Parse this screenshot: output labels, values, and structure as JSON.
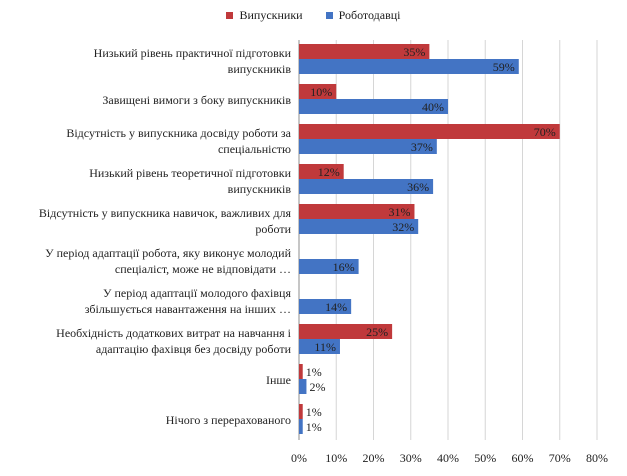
{
  "chart_data": {
    "type": "bar",
    "orientation": "horizontal",
    "title": "",
    "xlabel": "",
    "ylabel": "",
    "xlim": [
      0,
      80
    ],
    "x_ticks": [
      "0%",
      "10%",
      "20%",
      "30%",
      "40%",
      "50%",
      "60%",
      "70%",
      "80%"
    ],
    "grid": "vertical",
    "legend": "top-center",
    "value_suffix": "%",
    "categories": [
      [
        "Низький рівень практичної підготовки",
        "випускників"
      ],
      [
        "Завищені вимоги з боку випускників"
      ],
      [
        "Відсутність у випускника досвіду роботи за",
        "спеціальністю"
      ],
      [
        "Низький рівень теоретичної підготовки",
        "випускників"
      ],
      [
        "Відсутність у випускника навичок, важливих для",
        "роботи"
      ],
      [
        "У період адаптації робота, яку виконує молодий",
        "спеціаліст, може не відповідати …"
      ],
      [
        "У період адаптації молодого фахівця",
        "збільшується навантаження на інших …"
      ],
      [
        "Необхідність додаткових витрат на навчання і",
        "адаптацію фахівця без досвіду роботи"
      ],
      [
        "Інше"
      ],
      [
        "Нічого з перерахованого"
      ]
    ],
    "series": [
      {
        "name": "Випускники",
        "color": "#c0393b",
        "values": [
          35,
          10,
          70,
          12,
          31,
          null,
          null,
          25,
          1,
          1
        ],
        "labels": [
          "35%",
          "10%",
          "70%",
          "12%",
          "31%",
          "",
          "",
          "25%",
          "1%",
          "1%"
        ]
      },
      {
        "name": "Роботодавці",
        "color": "#4374c4",
        "values": [
          59,
          40,
          37,
          36,
          32,
          16,
          14,
          11,
          2,
          1
        ],
        "labels": [
          "59%",
          "40%",
          "37%",
          "36%",
          "32%",
          "16%",
          "14%",
          "11%",
          "2%",
          "1%"
        ]
      }
    ]
  }
}
